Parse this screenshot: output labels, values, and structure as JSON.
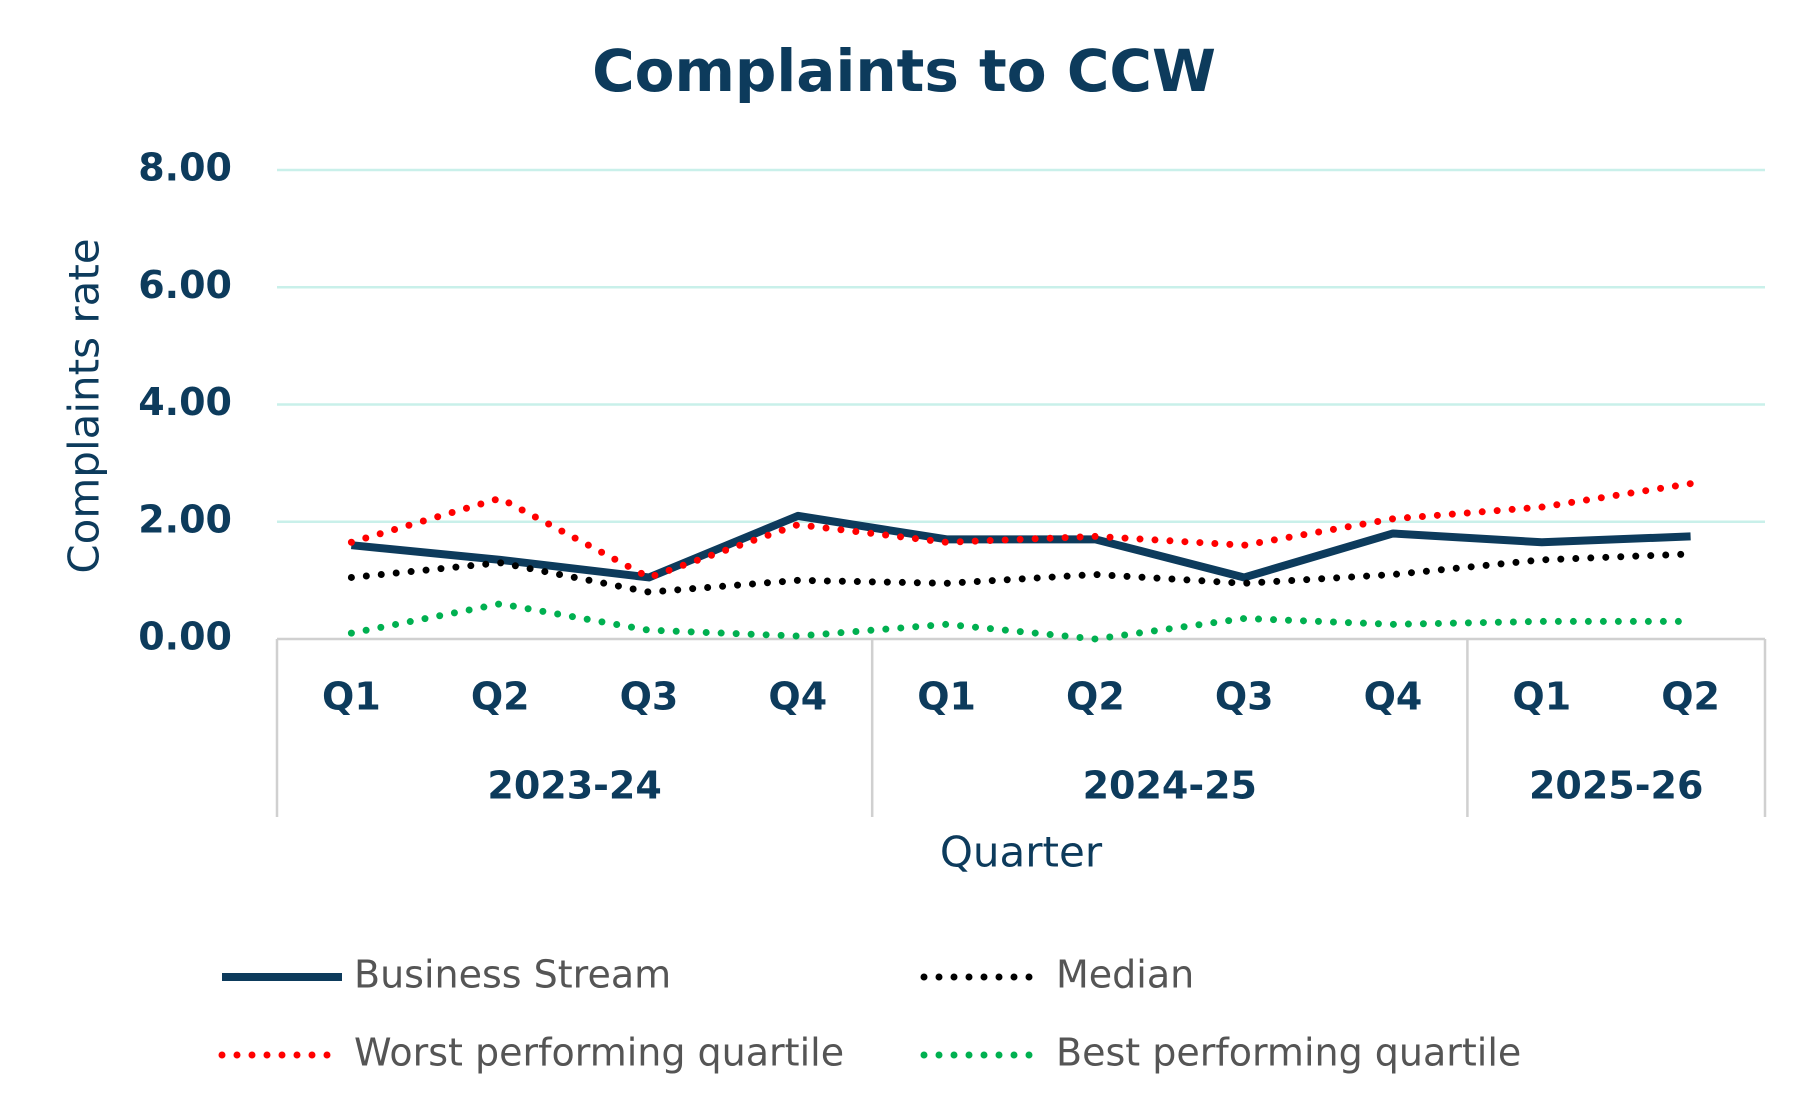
{
  "chart_data": {
    "type": "line",
    "title": "Complaints to CCW",
    "y_label": "Complaints rate",
    "x_label": "Quarter",
    "categories": [
      "Q1",
      "Q2",
      "Q3",
      "Q4",
      "Q1",
      "Q2",
      "Q3",
      "Q4",
      "Q1",
      "Q2"
    ],
    "category_groups": [
      "2023-24",
      "2023-24",
      "2023-24",
      "2023-24",
      "2024-25",
      "2024-25",
      "2024-25",
      "2024-25",
      "2025-26",
      "2025-26"
    ],
    "ylim": [
      0,
      8
    ],
    "yticks": [
      {
        "value": 0,
        "label": "0.00"
      },
      {
        "value": 2,
        "label": "2.00"
      },
      {
        "value": 4,
        "label": "4.00"
      },
      {
        "value": 6,
        "label": "6.00"
      },
      {
        "value": 8,
        "label": "8.00"
      }
    ],
    "grid": true,
    "series": [
      {
        "name": "Business Stream",
        "color": "#0d3b5c",
        "style": "solid",
        "values": [
          1.6,
          1.35,
          1.05,
          2.1,
          1.7,
          1.7,
          1.05,
          1.8,
          1.65,
          1.75
        ]
      },
      {
        "name": "Median",
        "color": "#000000",
        "style": "dotted",
        "values": [
          1.05,
          1.3,
          0.8,
          1.0,
          0.95,
          1.1,
          0.95,
          1.1,
          1.35,
          1.45
        ]
      },
      {
        "name": "Worst performing quartile",
        "color": "#ff0000",
        "style": "dotted",
        "values": [
          1.65,
          2.4,
          1.05,
          1.95,
          1.65,
          1.75,
          1.6,
          2.05,
          2.25,
          2.65
        ]
      },
      {
        "name": "Best performing quartile",
        "color": "#00b050",
        "style": "dotted",
        "values": [
          0.1,
          0.6,
          0.15,
          0.05,
          0.25,
          0.0,
          0.35,
          0.25,
          0.3,
          0.3
        ]
      }
    ]
  }
}
